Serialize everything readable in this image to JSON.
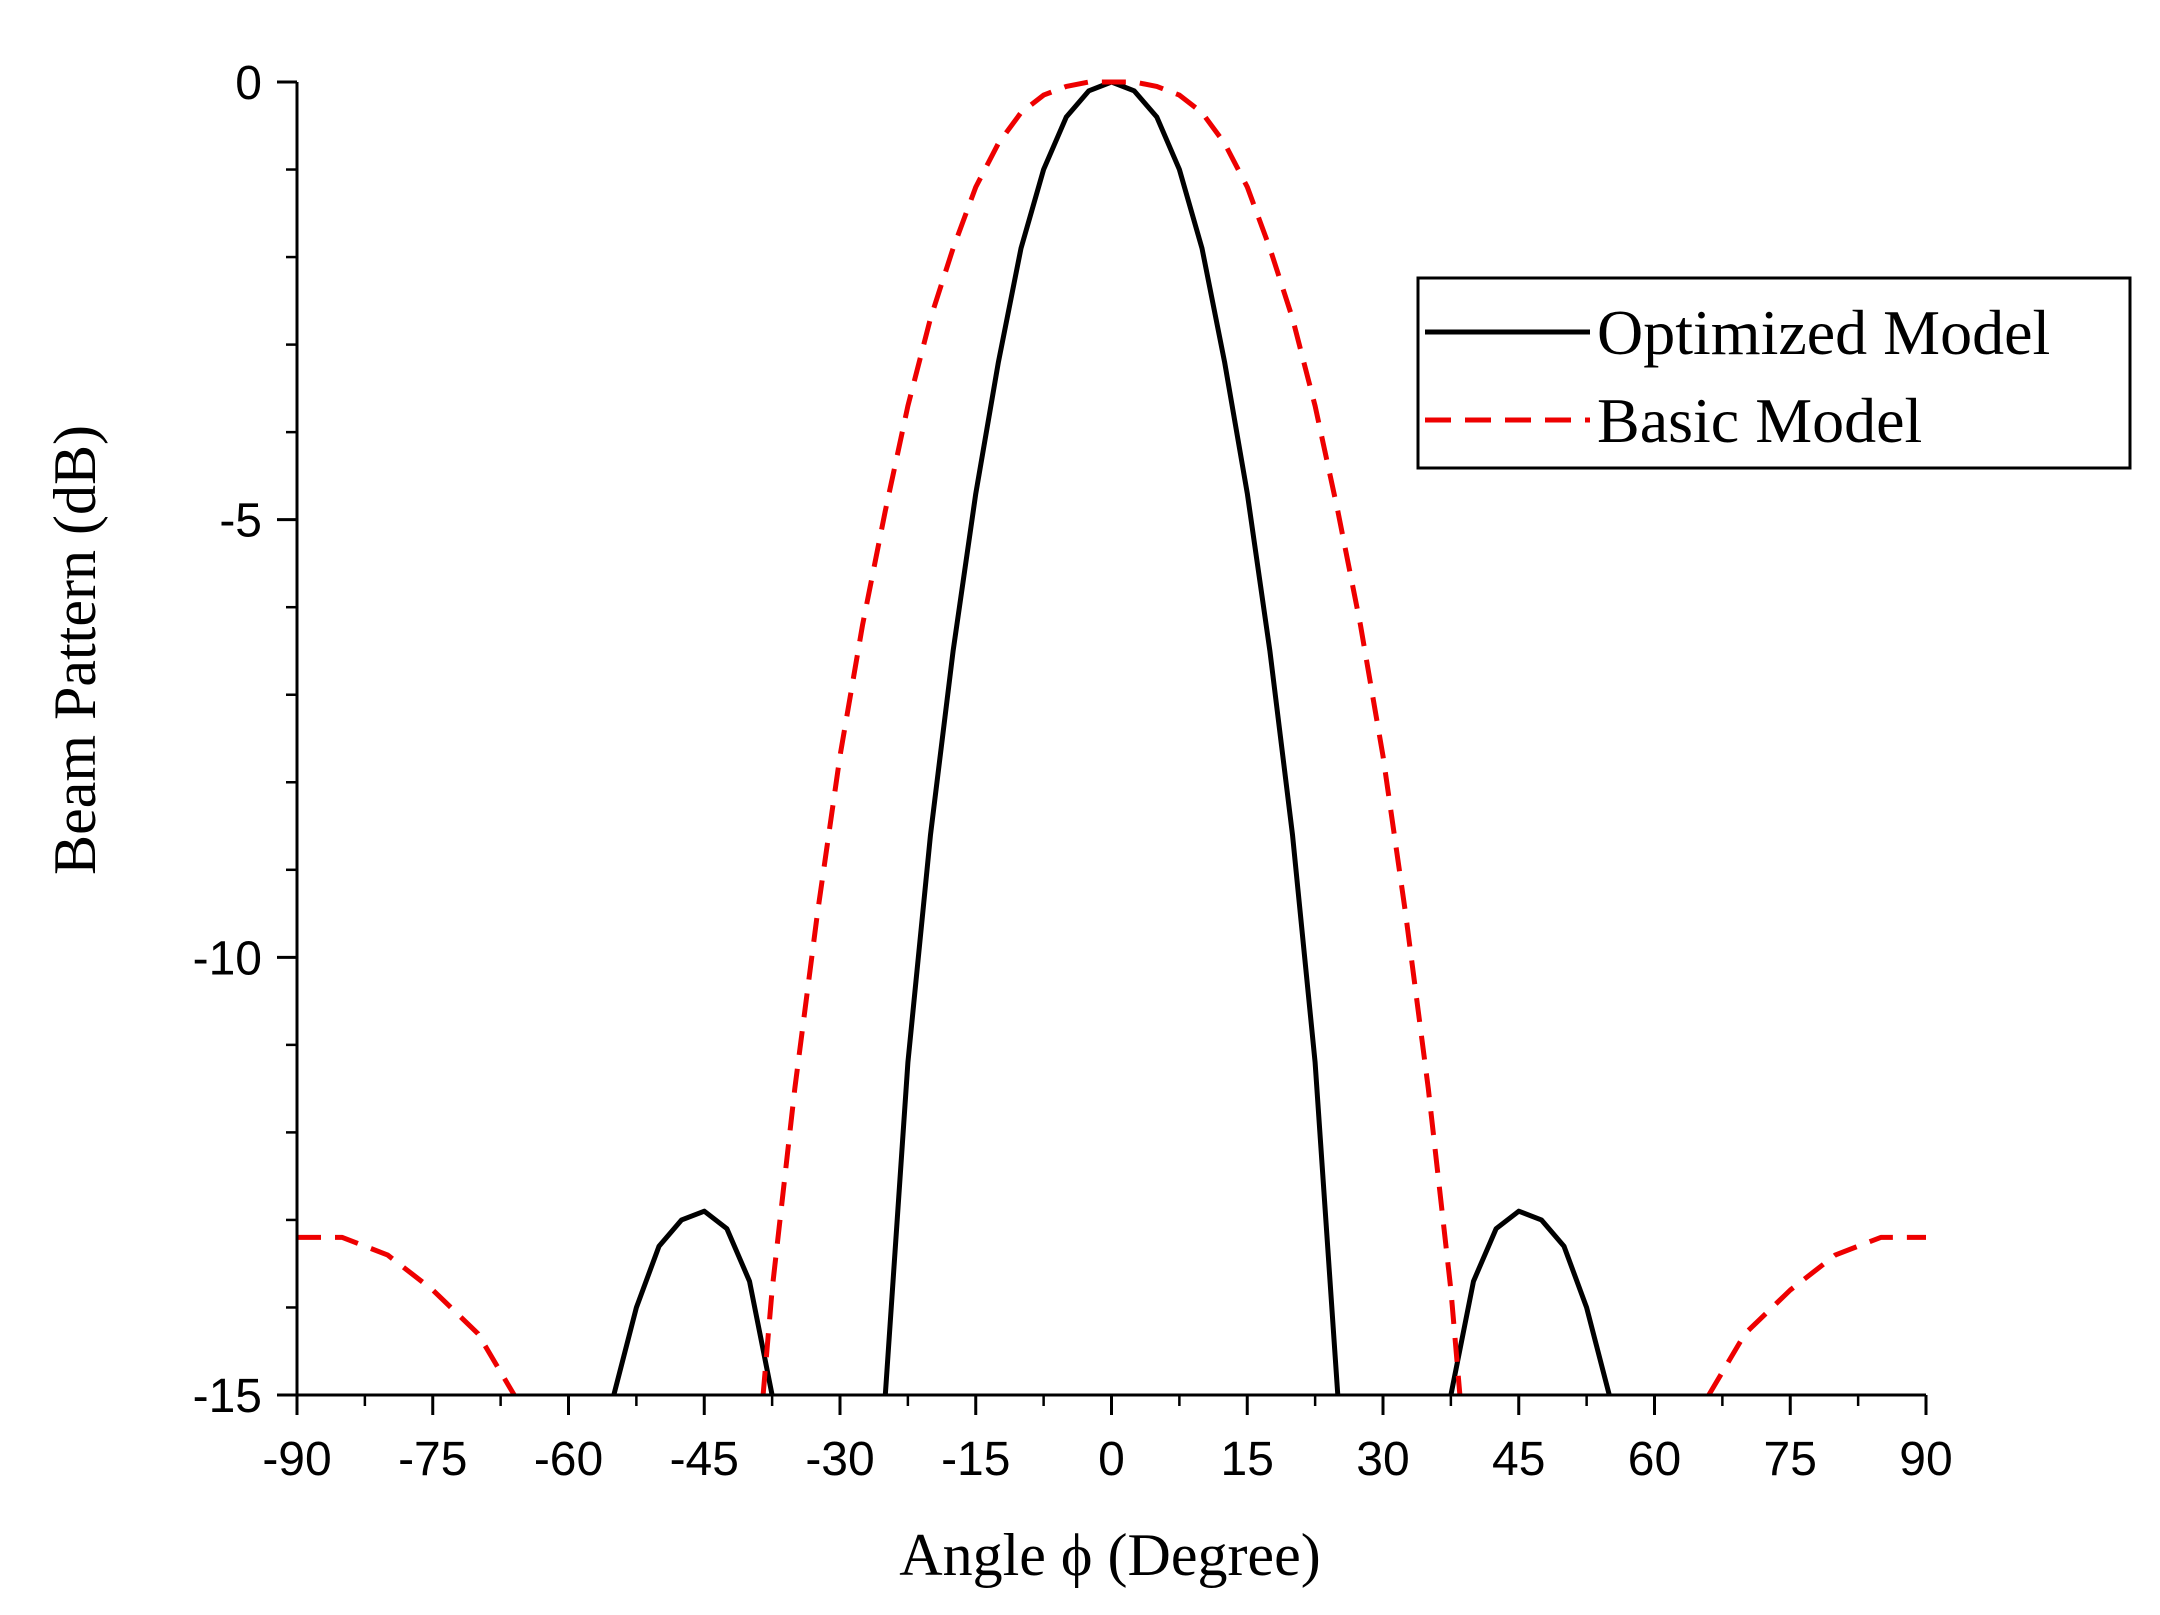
{
  "chart_data": {
    "type": "line",
    "title": "",
    "xlabel": "Angle ϕ (Degree)",
    "ylabel": "Beam Pattern (dB)",
    "xlim": [
      -90,
      90
    ],
    "ylim": [
      -15,
      0
    ],
    "xticks": [
      -90,
      -75,
      -60,
      -45,
      -30,
      -15,
      0,
      15,
      30,
      45,
      60,
      75,
      90
    ],
    "yticks": [
      0,
      -5,
      -10,
      -15
    ],
    "xtick_labels": [
      "-90",
      "-75",
      "-60",
      "-45",
      "-30",
      "-15",
      "0",
      "15",
      "30",
      "45",
      "60",
      "75",
      "90"
    ],
    "ytick_labels": [
      "0",
      "-5",
      "-10",
      "-15"
    ],
    "grid": false,
    "legend_position": "top-right",
    "series": [
      {
        "name": "Optimized Model",
        "color": "#000000",
        "style": "solid",
        "segments": [
          {
            "x": [
              -55,
              -52.5,
              -50,
              -47.5,
              -45,
              -42.5,
              -40,
              -37.5
            ],
            "y": [
              -15,
              -14.0,
              -13.3,
              -13.0,
              -12.9,
              -13.1,
              -13.7,
              -15
            ]
          },
          {
            "x": [
              -25,
              -22.5,
              -20,
              -17.5,
              -15,
              -12.5,
              -10,
              -7.5,
              -5,
              -2.5,
              0,
              2.5,
              5,
              7.5,
              10,
              12.5,
              15,
              17.5,
              20,
              22.5,
              25
            ],
            "y": [
              -15,
              -11.2,
              -8.6,
              -6.5,
              -4.7,
              -3.2,
              -1.9,
              -1.0,
              -0.4,
              -0.1,
              0,
              -0.1,
              -0.4,
              -1.0,
              -1.9,
              -3.2,
              -4.7,
              -6.5,
              -8.6,
              -11.2,
              -15
            ]
          },
          {
            "x": [
              37.5,
              40,
              42.5,
              45,
              47.5,
              50,
              52.5,
              55
            ],
            "y": [
              -15,
              -13.7,
              -13.1,
              -12.9,
              -13.0,
              -13.3,
              -14.0,
              -15
            ]
          }
        ]
      },
      {
        "name": "Basic Model",
        "color": "#ee0000",
        "style": "dashed",
        "segments": [
          {
            "x": [
              -90,
              -85,
              -80,
              -75,
              -70,
              -66
            ],
            "y": [
              -13.2,
              -13.2,
              -13.4,
              -13.8,
              -14.3,
              -15
            ]
          },
          {
            "x": [
              -38.5,
              -37.5,
              -35,
              -32.5,
              -30,
              -27.5,
              -25,
              -22.5,
              -20,
              -17.5,
              -15,
              -12.5,
              -10,
              -7.5,
              -5,
              -2.5,
              0,
              2.5,
              5,
              7.5,
              10,
              12.5,
              15,
              17.5,
              20,
              22.5,
              25,
              27.5,
              30,
              32.5,
              35,
              37.5,
              38.5
            ],
            "y": [
              -15,
              -13.8,
              -11.5,
              -9.5,
              -7.7,
              -6.2,
              -4.9,
              -3.7,
              -2.7,
              -1.9,
              -1.2,
              -0.7,
              -0.35,
              -0.15,
              -0.05,
              0,
              0,
              0,
              -0.05,
              -0.15,
              -0.35,
              -0.7,
              -1.2,
              -1.9,
              -2.7,
              -3.7,
              -4.9,
              -6.2,
              -7.7,
              -9.5,
              -11.5,
              -13.8,
              -15
            ]
          },
          {
            "x": [
              66,
              70,
              75,
              80,
              85,
              90
            ],
            "y": [
              -15,
              -14.3,
              -13.8,
              -13.4,
              -13.2,
              -13.2
            ]
          }
        ]
      }
    ]
  }
}
